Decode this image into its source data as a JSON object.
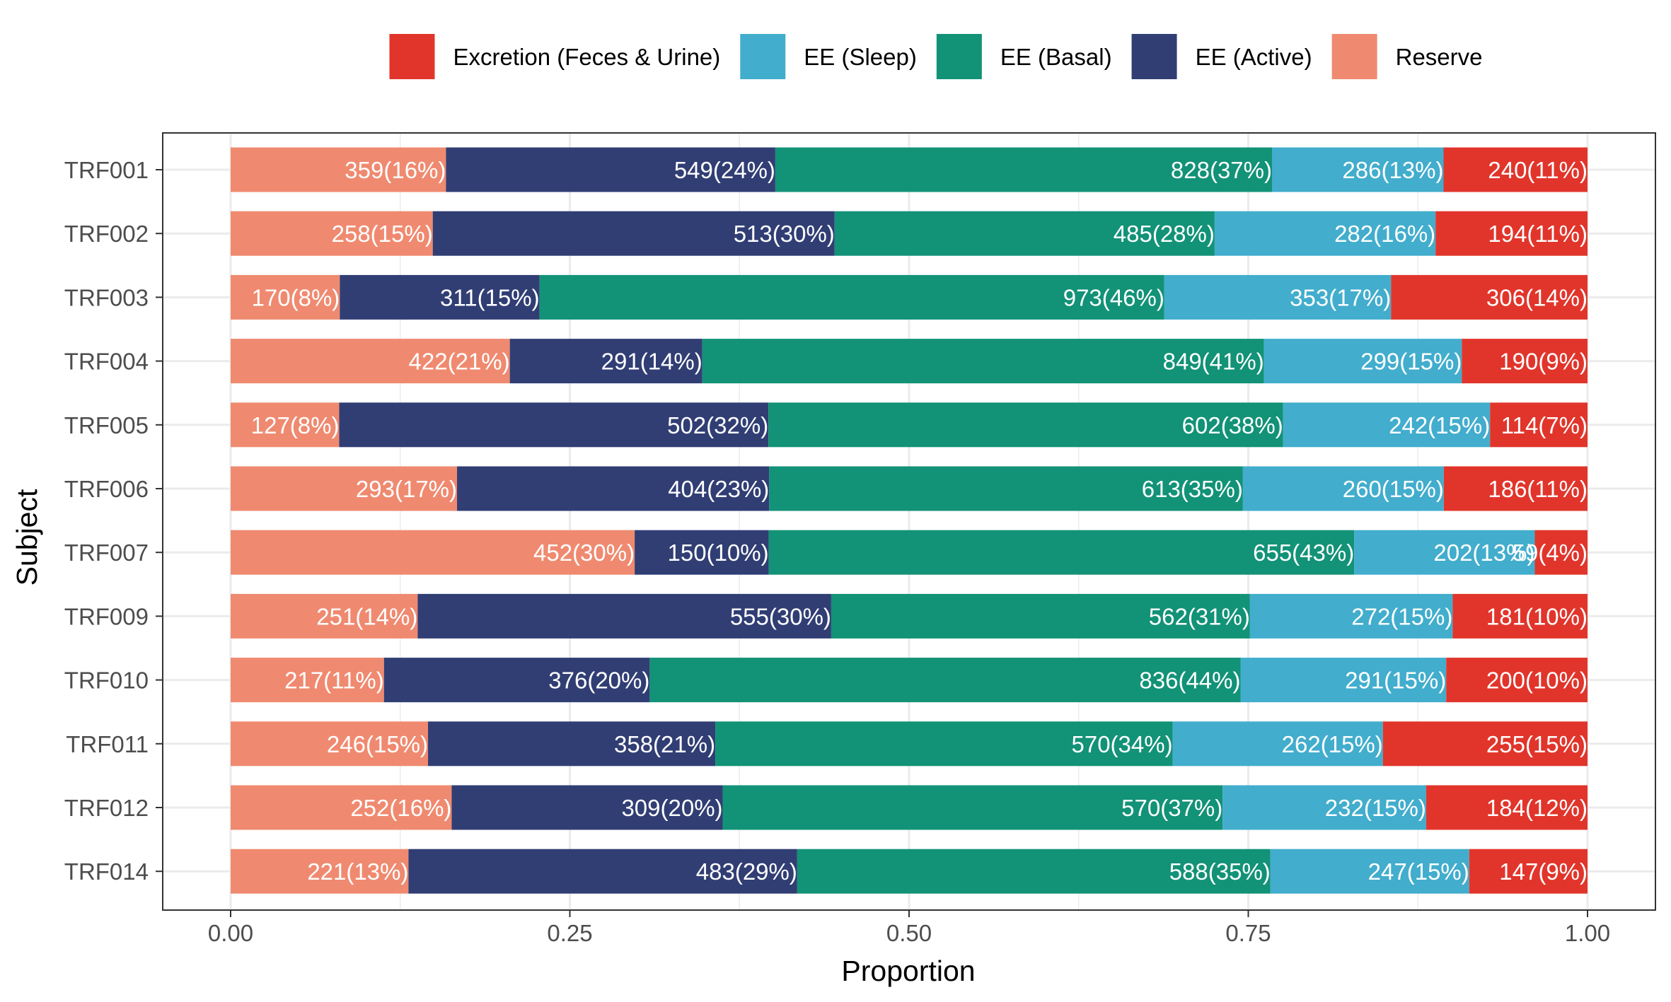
{
  "chart_data": {
    "type": "bar",
    "orientation": "horizontal",
    "stacked": true,
    "normalized": true,
    "xlabel": "Proportion",
    "ylabel": "Subject",
    "xlim": [
      0,
      1
    ],
    "xticks": [
      "0.00",
      "0.25",
      "0.50",
      "0.75",
      "1.00"
    ],
    "grid": true,
    "legend_position": "top",
    "categories": [
      "TRF001",
      "TRF002",
      "TRF003",
      "TRF004",
      "TRF005",
      "TRF006",
      "TRF007",
      "TRF009",
      "TRF010",
      "TRF011",
      "TRF012",
      "TRF014"
    ],
    "series": [
      {
        "name": "Reserve",
        "color": "#EF8A70",
        "values": [
          359,
          258,
          170,
          422,
          127,
          293,
          452,
          251,
          217,
          246,
          252,
          221
        ],
        "labels": [
          "359(16%)",
          "258(15%)",
          "170(8%)",
          "422(21%)",
          "127(8%)",
          "293(17%)",
          "452(30%)",
          "251(14%)",
          "217(11%)",
          "246(15%)",
          "252(16%)",
          "221(13%)"
        ]
      },
      {
        "name": "EE (Active)",
        "color": "#313E74",
        "values": [
          549,
          513,
          311,
          291,
          502,
          404,
          150,
          555,
          376,
          358,
          309,
          483
        ],
        "labels": [
          "549(24%)",
          "513(30%)",
          "311(15%)",
          "291(14%)",
          "502(32%)",
          "404(23%)",
          "150(10%)",
          "555(30%)",
          "376(20%)",
          "358(21%)",
          "309(20%)",
          "483(29%)"
        ]
      },
      {
        "name": "EE (Basal)",
        "color": "#129277",
        "values": [
          828,
          485,
          973,
          849,
          602,
          613,
          655,
          562,
          836,
          570,
          570,
          588
        ],
        "labels": [
          "828(37%)",
          "485(28%)",
          "973(46%)",
          "849(41%)",
          "602(38%)",
          "613(35%)",
          "655(43%)",
          "562(31%)",
          "836(44%)",
          "570(34%)",
          "570(37%)",
          "588(35%)"
        ]
      },
      {
        "name": "EE (Sleep)",
        "color": "#42ADCD",
        "values": [
          286,
          282,
          353,
          299,
          242,
          260,
          202,
          272,
          291,
          262,
          232,
          247
        ],
        "labels": [
          "286(13%)",
          "282(16%)",
          "353(17%)",
          "299(15%)",
          "242(15%)",
          "260(15%)",
          "202(13%)",
          "272(15%)",
          "291(15%)",
          "262(15%)",
          "232(15%)",
          "247(15%)"
        ]
      },
      {
        "name": "Excretion (Feces & Urine)",
        "color": "#E1352B",
        "values": [
          240,
          194,
          306,
          190,
          114,
          186,
          59,
          181,
          200,
          255,
          184,
          147
        ],
        "labels": [
          "240(11%)",
          "194(11%)",
          "306(14%)",
          "190(9%)",
          "114(7%)",
          "186(11%)",
          "59(4%)",
          "181(10%)",
          "200(10%)",
          "255(15%)",
          "184(12%)",
          "147(9%)"
        ]
      }
    ],
    "legend_order": [
      "Excretion (Feces & Urine)",
      "EE (Sleep)",
      "EE (Basal)",
      "EE (Active)",
      "Reserve"
    ]
  }
}
